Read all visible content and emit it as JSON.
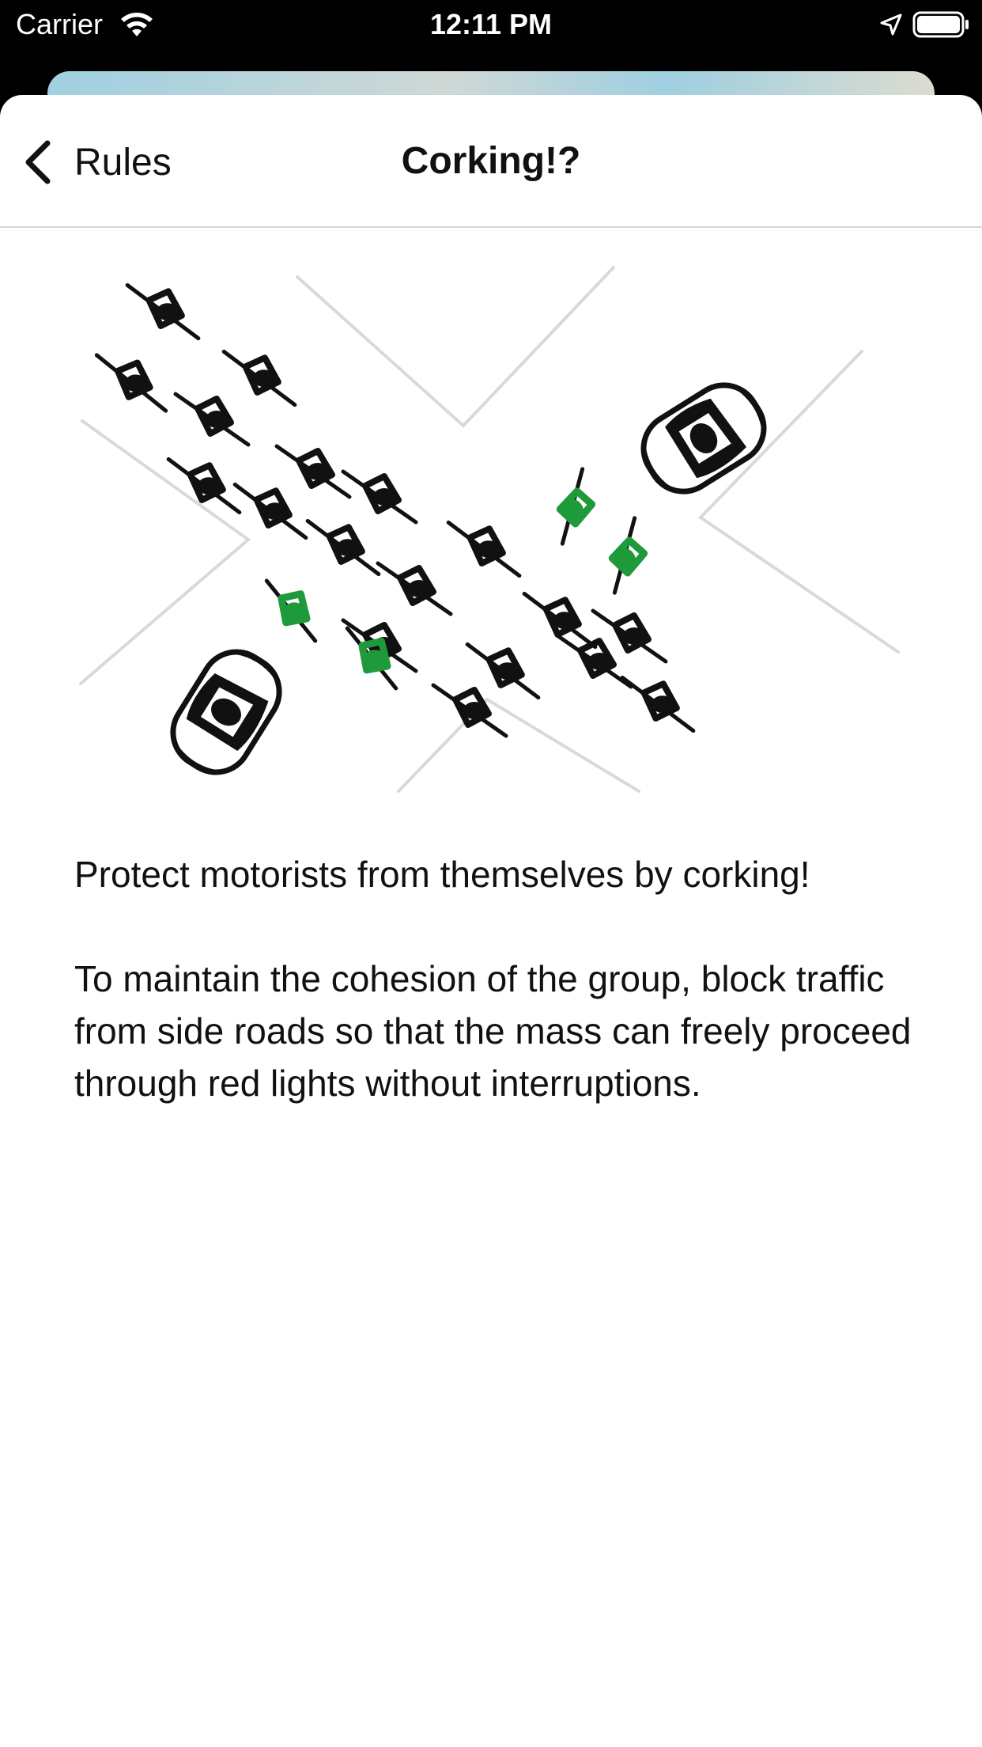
{
  "status_bar": {
    "carrier": "Carrier",
    "time": "12:11 PM",
    "wifi_icon": "wifi-icon",
    "location_icon": "location-arrow-icon",
    "battery_icon": "battery-full-icon"
  },
  "nav": {
    "back_label": "Rules",
    "title": "Corking!?",
    "back_icon": "chevron-left-icon"
  },
  "illustration": {
    "name": "corking-intersection-illustration",
    "accent_color": "#1f9a3a"
  },
  "content": {
    "paragraph_1": "Protect motorists from themselves by corking!",
    "paragraph_2": "To maintain the cohesion of the group, block traffic from side roads so that the mass can freely proceed through red lights without interruptions."
  }
}
